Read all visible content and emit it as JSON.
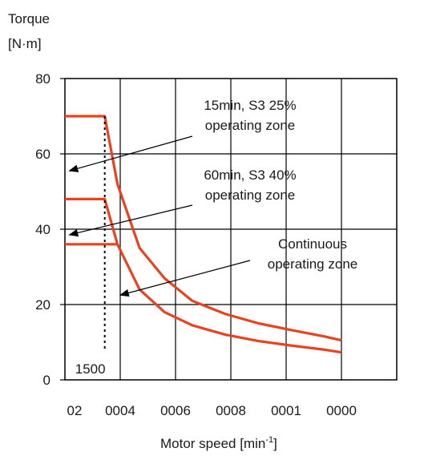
{
  "chart_data": {
    "type": "line",
    "ylabel_line1": "Torque",
    "ylabel_line2": "[N·m]",
    "xlabel_main": "Motor speed [min",
    "xlabel_sup": "-1",
    "xlabel_end": "]",
    "xlim": [
      0,
      6000
    ],
    "ylim": [
      0,
      80
    ],
    "grid": true,
    "x_ticks": [
      {
        "value": 0,
        "label": "02"
      },
      {
        "value": 1000,
        "label": "0004"
      },
      {
        "value": 2000,
        "label": "0006"
      },
      {
        "value": 3000,
        "label": "0008"
      },
      {
        "value": 4000,
        "label": "0001"
      },
      {
        "value": 5000,
        "label": "0000"
      }
    ],
    "y_ticks": [
      {
        "value": 0,
        "label": "0"
      },
      {
        "value": 20,
        "label": "20"
      },
      {
        "value": 40,
        "label": "40"
      },
      {
        "value": 60,
        "label": "60"
      },
      {
        "value": 80,
        "label": "80"
      }
    ],
    "base_speed_line": {
      "x": 720,
      "label": "1500",
      "y_top": 70
    },
    "series": [
      {
        "x": [
          0,
          720,
          950,
          1350,
          1800,
          2300,
          2900,
          3500,
          4100,
          4700,
          5000
        ],
        "y": [
          70,
          70,
          52,
          35,
          27,
          21,
          17.5,
          15,
          13.2,
          11.5,
          10.5
        ]
      },
      {
        "x": [
          0,
          720,
          950,
          1350,
          1800,
          2300,
          2900,
          3500,
          4100,
          4700,
          5000
        ],
        "y": [
          48,
          48,
          36,
          24,
          18,
          14.5,
          12,
          10.3,
          9.1,
          8,
          7.3
        ]
      },
      {
        "x": [
          0,
          720,
          950
        ],
        "y": [
          36,
          36,
          36
        ]
      }
    ],
    "annotations": [
      {
        "lines": [
          "15min, S3 25%",
          "operating zone"
        ],
        "arrow_to": [
          80,
          55.5
        ]
      },
      {
        "lines": [
          "60min, S3 40%",
          "operating zone"
        ],
        "arrow_to": [
          80,
          38.5
        ]
      },
      {
        "lines": [
          "Continuous",
          "operating zone"
        ],
        "arrow_to": [
          1000,
          22.5
        ]
      }
    ],
    "colors": {
      "curve": "#e8431f",
      "axis": "#000000",
      "dotted": "#000000"
    }
  }
}
